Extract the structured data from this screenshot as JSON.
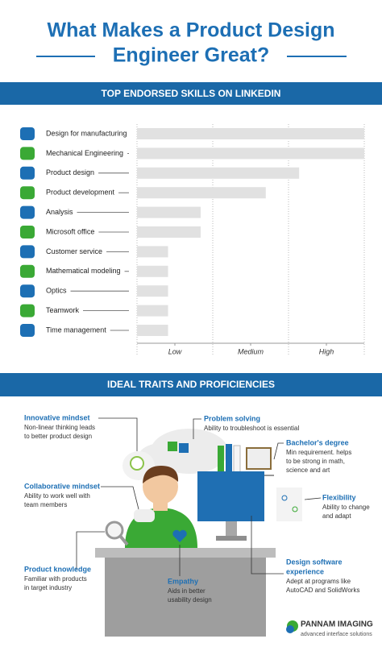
{
  "title": [
    "What Makes a Product Design",
    "Engineer Great?"
  ],
  "chart_data": {
    "type": "bar",
    "orientation": "horizontal",
    "title": "TOP ENDORSED SKILLS ON LINKEDIN",
    "categories": [
      "Design for manufacturing",
      "Mechanical Engineering",
      "Product design",
      "Product development",
      "Analysis",
      "Microsoft office",
      "Customer service",
      "Mathematical modeling",
      "Optics",
      "Teamwork",
      "Time management"
    ],
    "values": [
      3,
      3,
      2.14,
      1.7,
      0.84,
      0.84,
      0.41,
      0.41,
      0.41,
      0.41,
      0.41
    ],
    "color": "#e1e1e1",
    "xlim": [
      0,
      3
    ],
    "xticks": [
      {
        "value": 0.5,
        "label": "Low"
      },
      {
        "value": 1.5,
        "label": "Medium"
      },
      {
        "value": 2.5,
        "label": "High"
      }
    ]
  },
  "traits_section": {
    "title": "IDEAL TRAITS AND PROFICIENCIES",
    "traits": [
      {
        "title": [
          "Innovative mindset"
        ],
        "description": [
          "Non-linear thinking leads",
          "to better product design"
        ]
      },
      {
        "title": [
          "Problem solving"
        ],
        "description": [
          "Ability to troubleshoot is essential"
        ]
      },
      {
        "title": [
          "Bachelor's degree"
        ],
        "description": [
          "Min requirement. helps",
          "to be strong in math,",
          "science and art"
        ]
      },
      {
        "title": [
          "Collaborative mindset"
        ],
        "description": [
          "Ability to work well with",
          "team members"
        ]
      },
      {
        "title": [
          "Flexibility"
        ],
        "description": [
          "Ability to change",
          "and adapt"
        ]
      },
      {
        "title": [
          "Product knowledge"
        ],
        "description": [
          "Familiar with products",
          "in target industry"
        ]
      },
      {
        "title": [
          "Design software",
          "experience"
        ],
        "description": [
          "Adept at programs like",
          "AutoCAD and SolidWorks"
        ]
      },
      {
        "title": [
          "Empathy"
        ],
        "description": [
          "Aids in better",
          "usability design"
        ]
      }
    ]
  },
  "footer": {
    "brand": "PANNAM IMAGING",
    "tagline": "advanced interface solutions"
  }
}
